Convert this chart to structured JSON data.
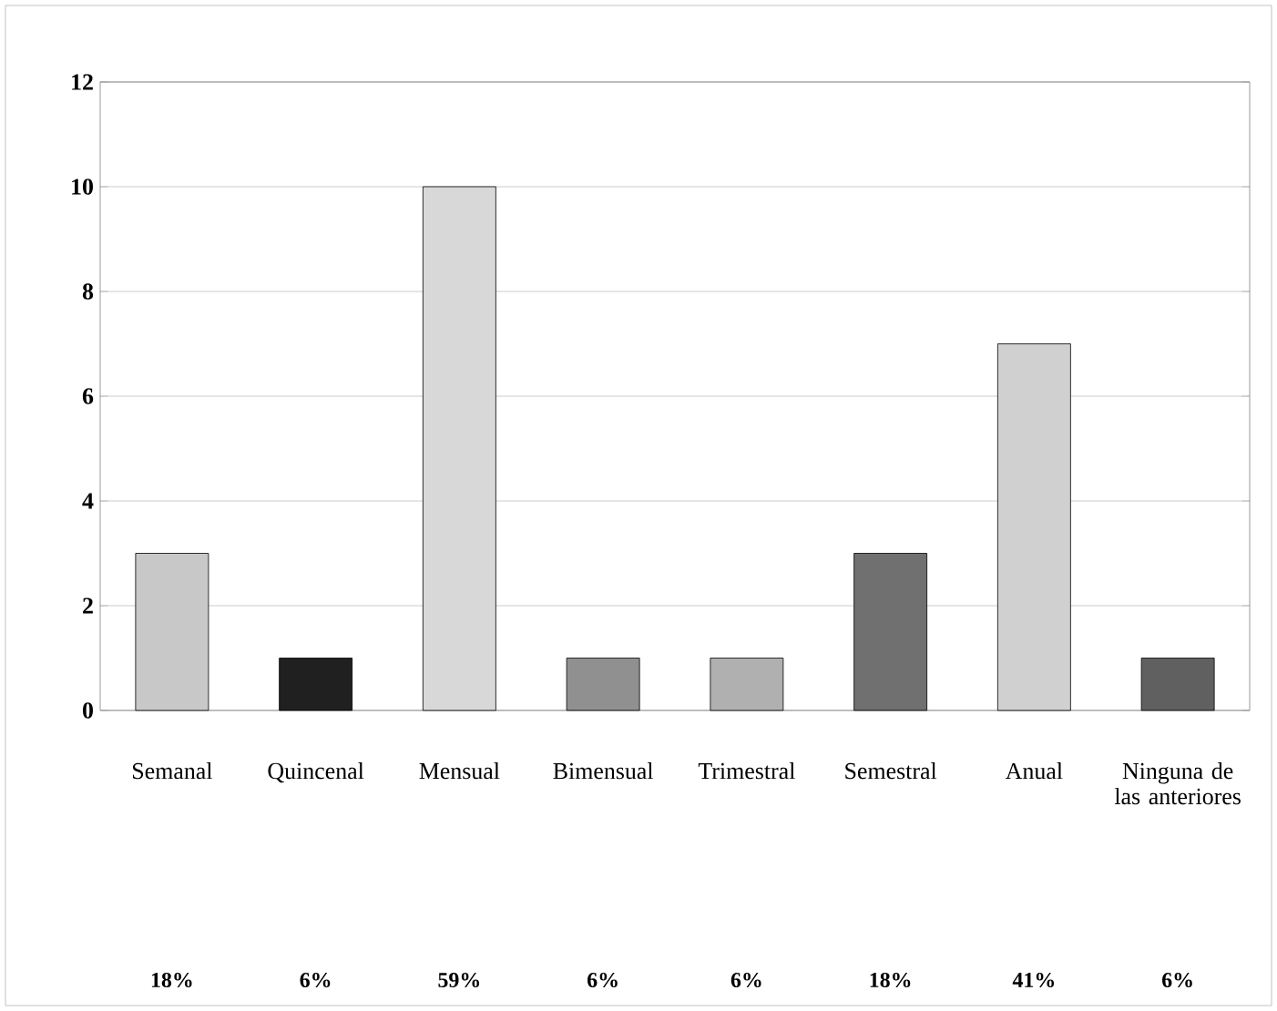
{
  "chart_data": {
    "type": "bar",
    "categories": [
      "Semanal",
      "Quincenal",
      "Mensual",
      "Bimensual",
      "Trimestral",
      "Semestral",
      "Anual",
      "Ninguna de las anteriores"
    ],
    "values": [
      3,
      1,
      10,
      1,
      1,
      3,
      7,
      1
    ],
    "colors": [
      "#c8c8c8",
      "#202020",
      "#d8d8d8",
      "#909090",
      "#b0b0b0",
      "#707070",
      "#d0d0d0",
      "#606060"
    ],
    "annotations": [
      "18%",
      "6%",
      "59%",
      "6%",
      "6%",
      "18%",
      "41%",
      "6%"
    ],
    "ylim": [
      0,
      12
    ],
    "yticks": [
      0,
      2,
      4,
      6,
      8,
      10,
      12
    ],
    "grid": "y"
  }
}
